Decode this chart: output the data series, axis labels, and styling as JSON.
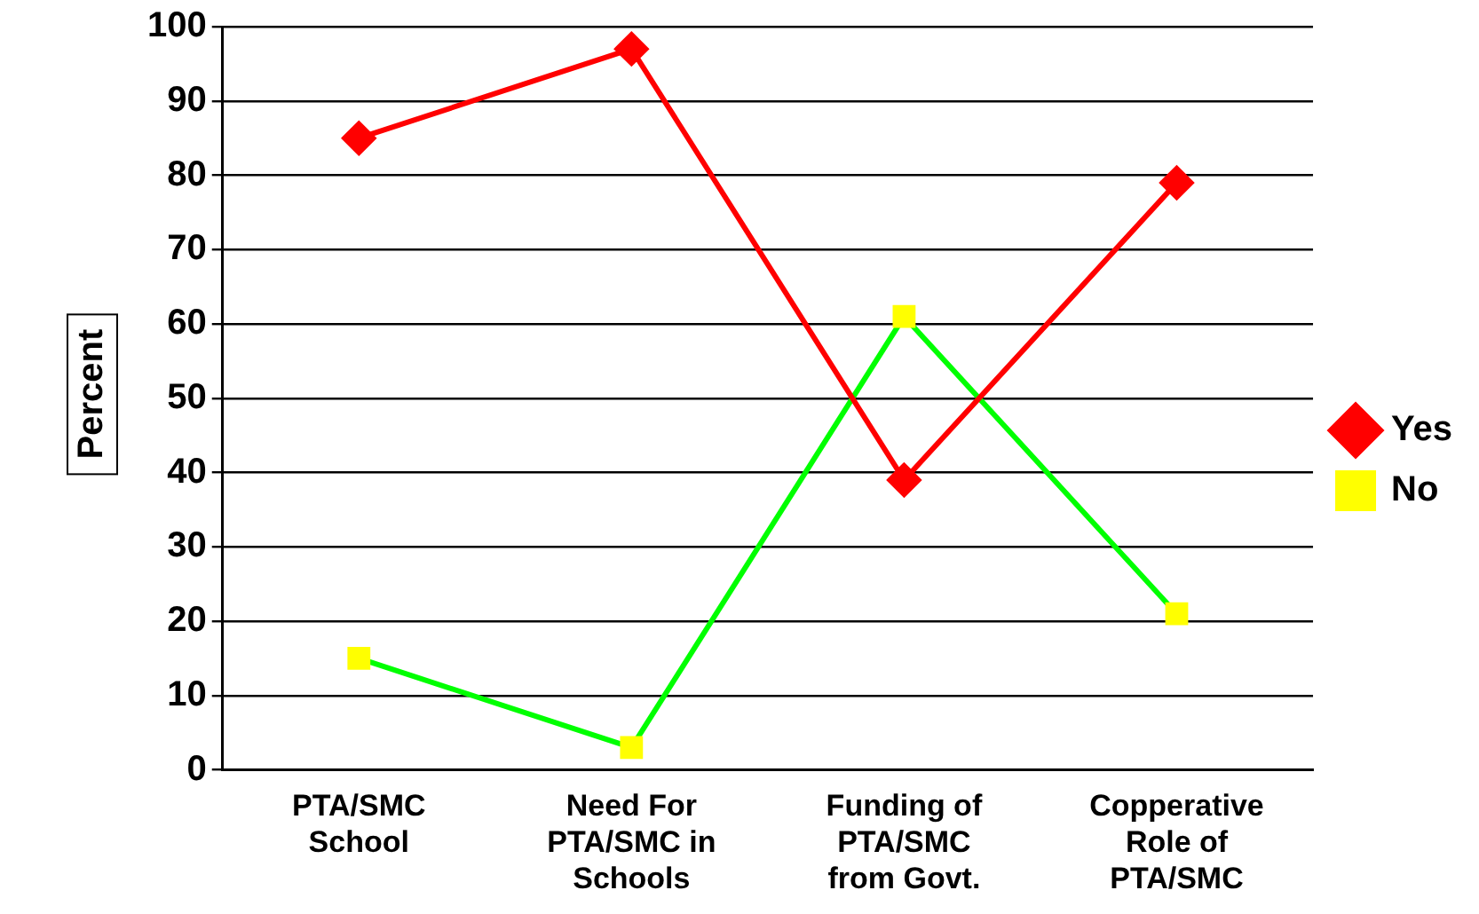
{
  "chart_data": {
    "type": "line",
    "ylabel": "Percent",
    "categories": [
      "PTA/SMC School",
      "Need For PTA/SMC in Schools",
      "Funding of PTA/SMC from Govt.",
      "Copperative Role of PTA/SMC"
    ],
    "series": [
      {
        "name": "Yes",
        "color": "#ff0000",
        "marker": "diamond",
        "values": [
          85,
          97,
          39,
          79
        ]
      },
      {
        "name": "No",
        "color": "#00ff00",
        "colors": [
          "#ffff00",
          "#ffff00",
          "#ffff00",
          "#ffff00"
        ],
        "marker": "square",
        "values": [
          15,
          3,
          61,
          21
        ]
      }
    ],
    "ylim": [
      0,
      100
    ],
    "yticks": [
      0,
      10,
      20,
      30,
      40,
      50,
      60,
      70,
      80,
      90,
      100
    ],
    "grid": "y",
    "legend": "right",
    "line_style": "solid"
  }
}
